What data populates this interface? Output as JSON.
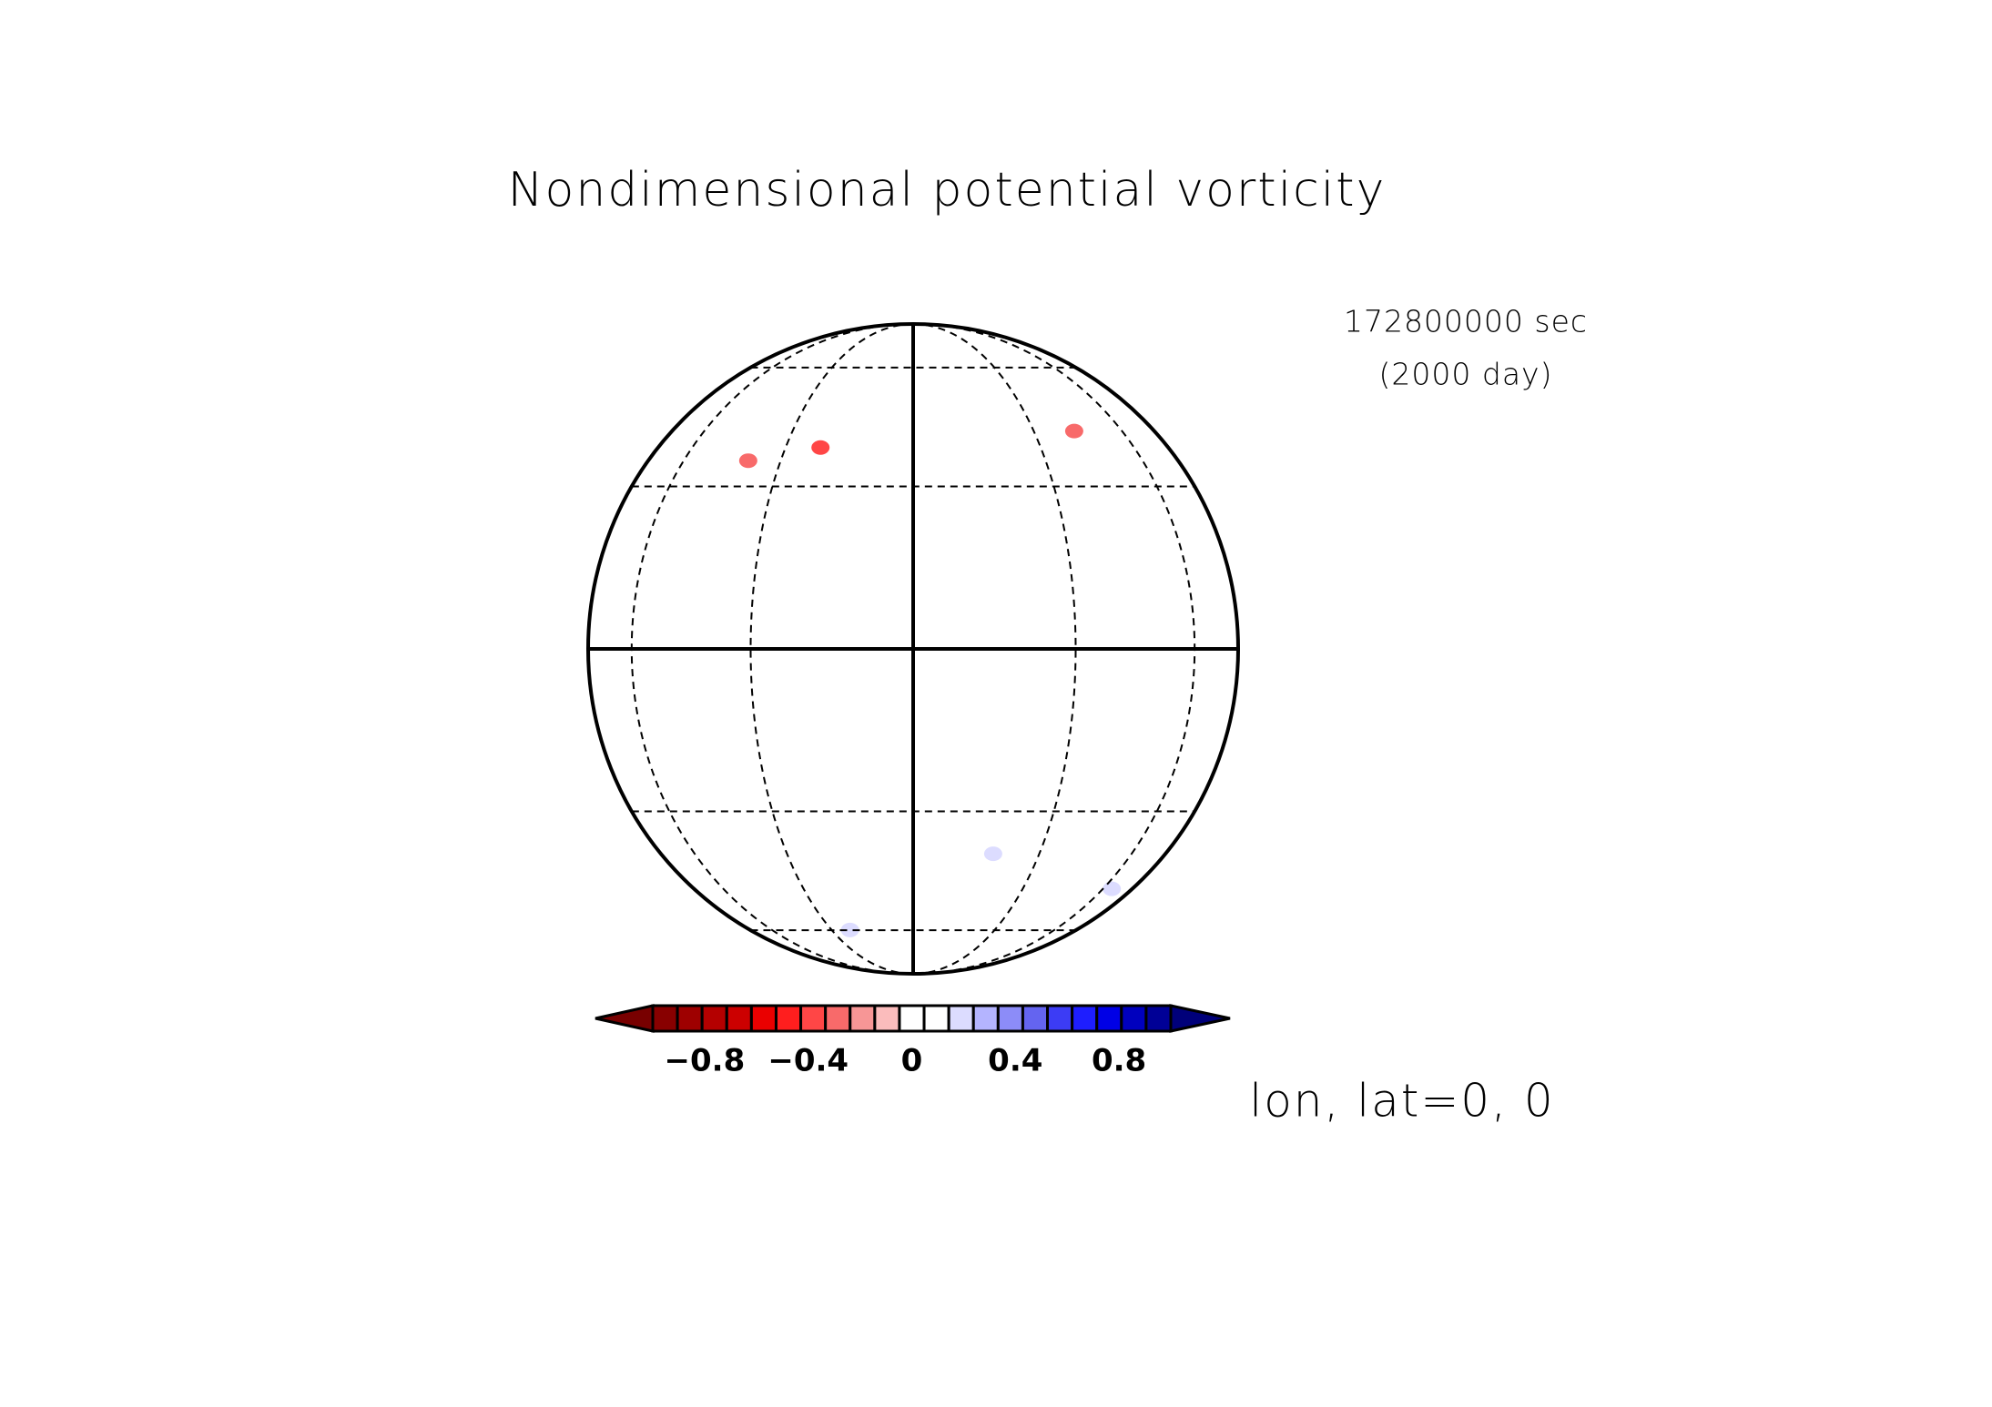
{
  "chart_data": {
    "type": "orthographic_map",
    "title": "Nondimensional potential vorticity",
    "time_seconds": "172800000 sec",
    "time_days": "(2000 day)",
    "projection_label": "lon, lat=0, 0",
    "lon_lines": [
      -60,
      -30,
      0,
      30,
      60
    ],
    "lat_lines": [
      -60,
      -30,
      0,
      30,
      60
    ],
    "patches": [
      {
        "lon": -38.5,
        "lat": 35.4,
        "value": -0.25
      },
      {
        "lon": -21.3,
        "lat": 38.3,
        "value": -0.35
      },
      {
        "lon": 41.9,
        "lat": 42.1,
        "value": -0.25
      },
      {
        "lon": 18.5,
        "lat": -39.1,
        "value": 0.15
      },
      {
        "lon": -22.8,
        "lat": -59.9,
        "value": 0.15
      },
      {
        "lon": 65,
        "lat": -47.6,
        "value": 0.15
      }
    ],
    "colorbar": {
      "clim": [
        -1,
        1
      ],
      "colors": [
        "#780000",
        "#880000",
        "#9e0000",
        "#b40000",
        "#cc0000",
        "#ea0000",
        "#ff1e1e",
        "#ff4646",
        "#f86a6a",
        "#f79696",
        "#fbbcbc",
        "#ffffff",
        "#ffffff",
        "#dcdcff",
        "#b4b4ff",
        "#8c8cf8",
        "#6464f0",
        "#3c3cf5",
        "#1e1eff",
        "#0000e6",
        "#0000be",
        "#000096",
        "#00007a"
      ],
      "ticks": [
        {
          "value": -0.8,
          "label": "−0.8"
        },
        {
          "value": -0.4,
          "label": "−0.4"
        },
        0,
        0.4,
        0.8
      ]
    }
  }
}
